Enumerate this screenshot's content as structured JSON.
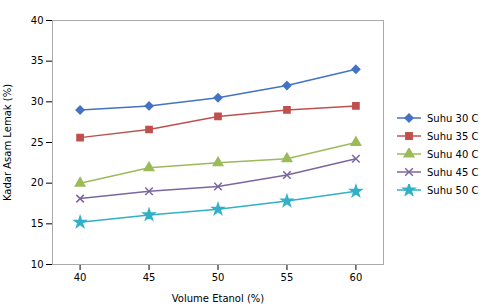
{
  "chart_data": {
    "type": "line",
    "x": [
      40,
      45,
      50,
      55,
      60
    ],
    "series": [
      {
        "name": "Suhu 30 C",
        "values": [
          29.0,
          29.5,
          30.5,
          32.0,
          34.0
        ],
        "color": "#4472C4",
        "marker": "diamond"
      },
      {
        "name": "Suhu 35 C",
        "values": [
          25.6,
          26.6,
          28.2,
          29.0,
          29.5
        ],
        "color": "#C0504D",
        "marker": "square"
      },
      {
        "name": "Suhu 40 C",
        "values": [
          20.0,
          21.9,
          22.5,
          23.0,
          25.0
        ],
        "color": "#9BBB59",
        "marker": "triangle"
      },
      {
        "name": "Suhu 45 C",
        "values": [
          18.1,
          19.0,
          19.6,
          21.0,
          23.0
        ],
        "color": "#7B66A0",
        "marker": "x"
      },
      {
        "name": "Suhu 50 C",
        "values": [
          15.2,
          16.1,
          16.8,
          17.8,
          19.0
        ],
        "color": "#31B0C7",
        "marker": "star"
      }
    ],
    "xlabel": "Volume Etanol (%)",
    "ylabel": "Kadar Asam Lemak (%)",
    "xlim": [
      38,
      62
    ],
    "ylim": [
      10,
      40
    ],
    "xticks": [
      40,
      45,
      50,
      55,
      60
    ],
    "yticks": [
      10,
      15,
      20,
      25,
      30,
      35,
      40
    ],
    "grid": false,
    "legend": "right"
  }
}
